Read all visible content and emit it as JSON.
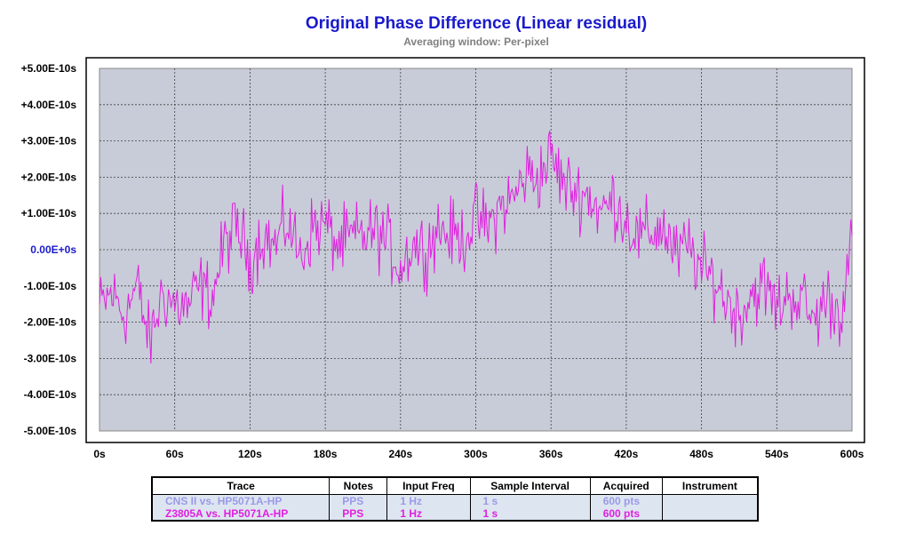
{
  "chart_data": {
    "type": "line",
    "title": "Original Phase Difference (Linear residual)",
    "subtitle": "Averaging window: Per-pixel",
    "xlabel": "",
    "ylabel": "",
    "xlim": [
      0,
      600
    ],
    "ylim": [
      -5e-10,
      5e-10
    ],
    "grid": true,
    "x_ticks": [
      "0s",
      "60s",
      "120s",
      "180s",
      "240s",
      "300s",
      "360s",
      "420s",
      "480s",
      "540s",
      "600s"
    ],
    "y_ticks": [
      "+5.00E-10s",
      "+4.00E-10s",
      "+3.00E-10s",
      "+2.00E-10s",
      "+1.00E-10s",
      "0.00E+0s",
      "-1.00E-10s",
      "-2.00E-10s",
      "-3.00E-10s",
      "-4.00E-10s",
      "-5.00E-10s"
    ],
    "plot_background": "#c8ccd8",
    "series": [
      {
        "name": "Z3805A vs. HP5071A-HP",
        "color": "#e020e0",
        "x": [
          0,
          10,
          20,
          30,
          40,
          50,
          60,
          70,
          80,
          90,
          100,
          110,
          120,
          130,
          140,
          150,
          160,
          170,
          180,
          190,
          200,
          210,
          220,
          230,
          240,
          250,
          260,
          270,
          280,
          290,
          300,
          310,
          320,
          330,
          340,
          350,
          360,
          370,
          380,
          390,
          400,
          410,
          420,
          430,
          440,
          450,
          460,
          470,
          480,
          490,
          500,
          510,
          520,
          530,
          540,
          550,
          560,
          570,
          580,
          590,
          600
        ],
        "y": [
          -1.6e-10,
          -1.2e-10,
          -1.8e-10,
          -1e-10,
          -2.6e-10,
          -1.2e-10,
          -1.5e-10,
          -1.6e-10,
          -1e-10,
          -1.3e-10,
          2e-11,
          6e-11,
          -3e-11,
          4e-11,
          1e-11,
          8e-11,
          -2e-11,
          6e-11,
          7e-11,
          1e-11,
          3e-11,
          4e-11,
          5e-11,
          2e-11,
          -5e-11,
          2e-11,
          0.0,
          6e-11,
          4e-11,
          3e-11,
          9e-11,
          6e-11,
          1.2e-10,
          1.4e-10,
          2.1e-10,
          2e-10,
          2.6e-10,
          1.8e-10,
          1.6e-10,
          1.5e-10,
          1e-10,
          1.4e-10,
          8e-11,
          3e-11,
          5e-11,
          6e-11,
          -2e-11,
          1e-11,
          -6e-11,
          -8e-11,
          -1.4e-10,
          -1.8e-10,
          -1.2e-10,
          -1e-10,
          -1.6e-10,
          -1.2e-10,
          -1.4e-10,
          -2e-10,
          -1.3e-10,
          -1.8e-10,
          1e-11
        ]
      }
    ]
  },
  "legend_table": {
    "headers": {
      "trace": "Trace",
      "notes": "Notes",
      "input_freq": "Input Freq",
      "sample_interval": "Sample Interval",
      "acquired": "Acquired",
      "instrument": "Instrument"
    },
    "rows": [
      {
        "trace": "CNS II vs. HP5071A-HP",
        "notes": "PPS",
        "input_freq": "1 Hz",
        "sample_interval": "1 s",
        "acquired": "600 pts",
        "instrument": "",
        "color": "#9a9ae8"
      },
      {
        "trace": "Z3805A vs. HP5071A-HP",
        "notes": "PPS",
        "input_freq": "1 Hz",
        "sample_interval": "1 s",
        "acquired": "600 pts",
        "instrument": "",
        "color": "#e020e0"
      }
    ]
  }
}
